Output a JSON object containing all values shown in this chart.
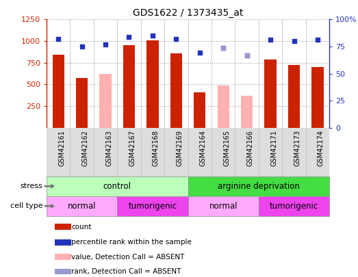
{
  "title": "GDS1622 / 1373435_at",
  "samples": [
    "GSM42161",
    "GSM42162",
    "GSM42163",
    "GSM42167",
    "GSM42168",
    "GSM42169",
    "GSM42164",
    "GSM42165",
    "GSM42166",
    "GSM42171",
    "GSM42173",
    "GSM42174"
  ],
  "bar_values": [
    840,
    570,
    null,
    950,
    1005,
    855,
    410,
    null,
    null,
    790,
    720,
    700
  ],
  "bar_absent_values": [
    null,
    null,
    620,
    null,
    null,
    null,
    null,
    490,
    370,
    null,
    null,
    null
  ],
  "scatter_pct": [
    82,
    75,
    77,
    84,
    85,
    82,
    69,
    74,
    67,
    81,
    80,
    81
  ],
  "scatter_absent_pct": [
    null,
    null,
    null,
    null,
    null,
    null,
    null,
    74,
    67,
    null,
    null,
    null
  ],
  "ylim_left": [
    0,
    1250
  ],
  "ylim_right": [
    0,
    100
  ],
  "yticks_left": [
    250,
    500,
    750,
    1000,
    1250
  ],
  "yticks_right": [
    0,
    25,
    50,
    75,
    100
  ],
  "bar_color": "#cc2200",
  "bar_absent_color": "#ffb0b0",
  "scatter_color": "#2233bb",
  "scatter_absent_color": "#9999cc",
  "stress_groups": [
    {
      "label": "control",
      "start": 0,
      "end": 6,
      "color": "#bbffbb"
    },
    {
      "label": "arginine deprivation",
      "start": 6,
      "end": 12,
      "color": "#44dd44"
    }
  ],
  "cell_groups": [
    {
      "label": "normal",
      "start": 0,
      "end": 3,
      "color": "#ffaaff"
    },
    {
      "label": "tumorigenic",
      "start": 3,
      "end": 6,
      "color": "#ee44ee"
    },
    {
      "label": "normal",
      "start": 6,
      "end": 9,
      "color": "#ffaaff"
    },
    {
      "label": "tumorigenic",
      "start": 9,
      "end": 12,
      "color": "#ee44ee"
    }
  ],
  "legend_items": [
    {
      "label": "count",
      "color": "#cc2200"
    },
    {
      "label": "percentile rank within the sample",
      "color": "#2233bb"
    },
    {
      "label": "value, Detection Call = ABSENT",
      "color": "#ffb0b0"
    },
    {
      "label": "rank, Detection Call = ABSENT",
      "color": "#9999cc"
    }
  ],
  "xticklabel_bg": "#dddddd"
}
